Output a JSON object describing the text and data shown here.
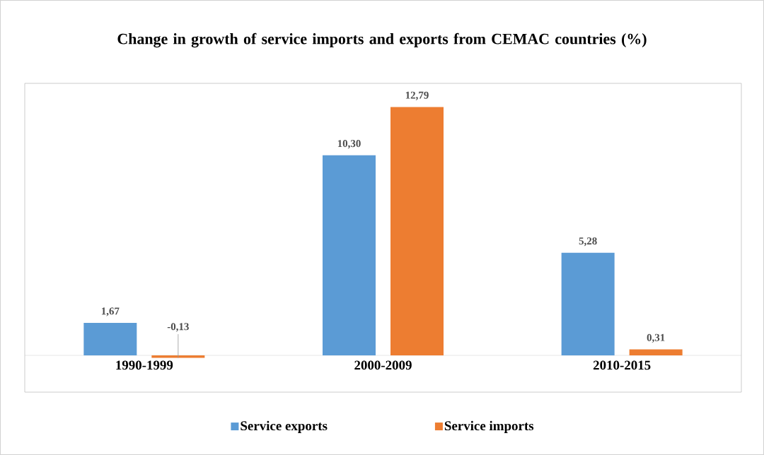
{
  "chart_data": {
    "type": "bar",
    "title": "Change in growth of service imports and exports from CEMAC countries (%)",
    "categories": [
      "1990-1999",
      "2000-2009",
      "2010-2015"
    ],
    "series": [
      {
        "name": "Service exports",
        "color": "#5b9bd5",
        "values": [
          1.67,
          10.3,
          5.28
        ],
        "value_labels": [
          "1,67",
          "10,30",
          "5,28"
        ]
      },
      {
        "name": "Service imports",
        "color": "#ed7d31",
        "values": [
          -0.13,
          12.79,
          0.31
        ],
        "value_labels": [
          "-0,13",
          "12,79",
          "0,31"
        ]
      }
    ],
    "legend": "bottom"
  }
}
